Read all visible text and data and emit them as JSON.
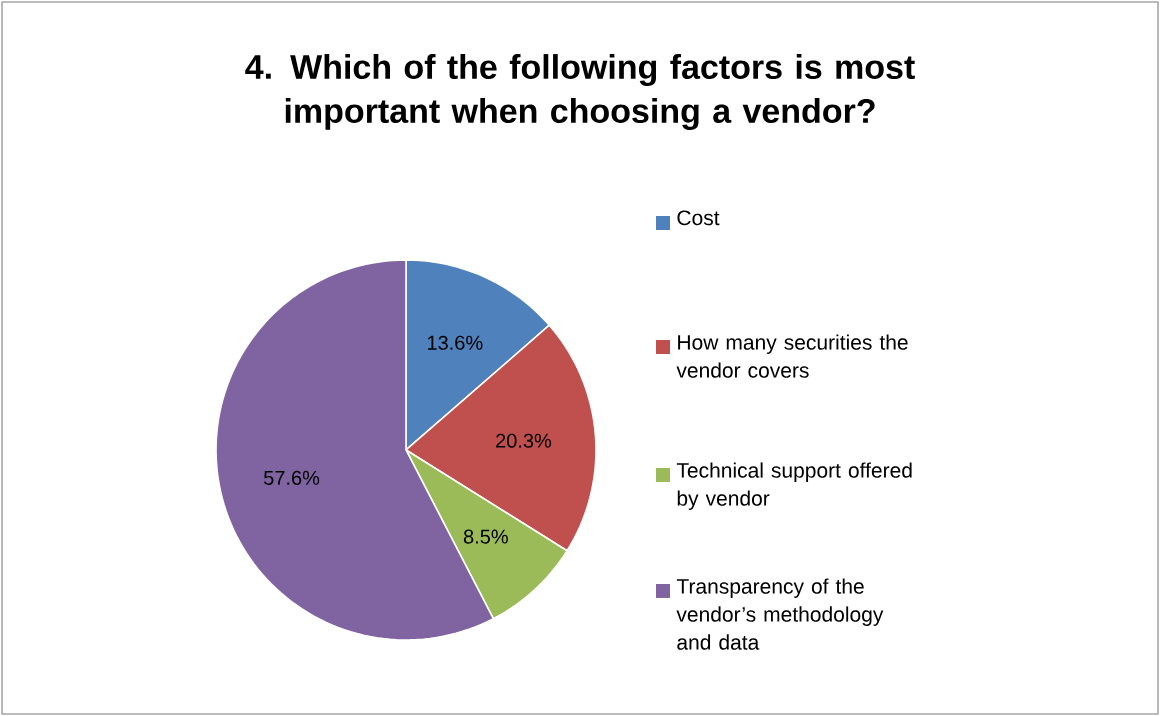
{
  "chart_data": {
    "type": "pie",
    "title": "4. Which of the following factors is most important when choosing a vendor?",
    "categories": [
      "Cost",
      "How many securities the vendor covers",
      "Technical support offered by vendor",
      "Transparency of the vendor’s methodology and data"
    ],
    "values": [
      13.6,
      20.3,
      8.5,
      57.6
    ],
    "colors": [
      "#4f81bd",
      "#c0504d",
      "#9bbb59",
      "#8064a2"
    ],
    "value_labels": [
      "13.6%",
      "20.3%",
      "8.5%",
      "57.6%"
    ],
    "legend": "right"
  }
}
